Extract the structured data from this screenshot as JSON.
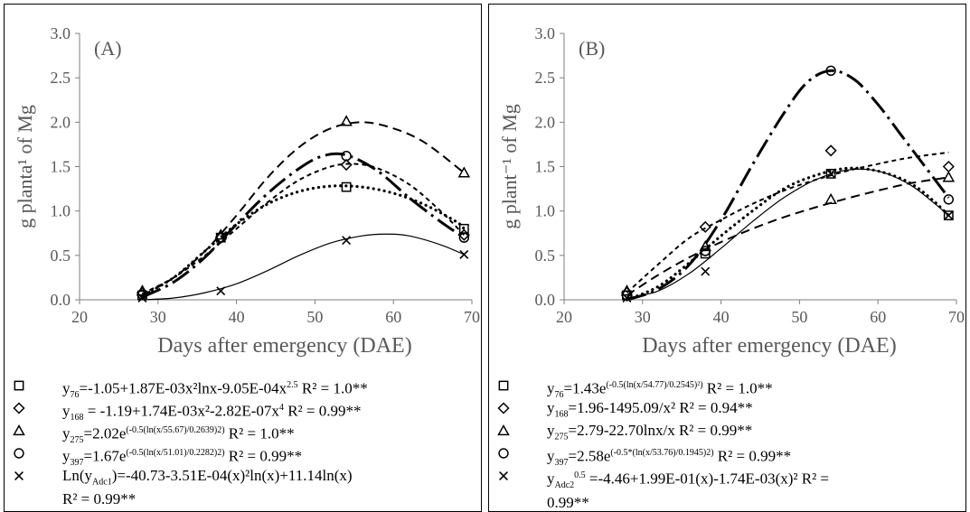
{
  "chart_data": [
    {
      "type": "line",
      "panel_label": "(A)",
      "xlabel": "Days after emergency (DAE)",
      "ylabel": "g planta¹ of Mg",
      "xlim": [
        20,
        70
      ],
      "ylim": [
        0,
        3.0
      ],
      "xticks": [
        "20",
        "30",
        "40",
        "50",
        "60",
        "70"
      ],
      "yticks": [
        "0.0",
        "0.5",
        "1.0",
        "1.5",
        "2.0",
        "2.5",
        "3.0"
      ],
      "grid": false,
      "x": [
        28,
        38,
        54,
        69
      ],
      "series": [
        {
          "marker": "square",
          "line_style": "dotted",
          "values": [
            0.05,
            0.7,
            1.27,
            0.8
          ],
          "fit": [
            [
              28,
              0.05
            ],
            [
              32,
              0.25
            ],
            [
              36,
              0.55
            ],
            [
              40,
              0.85
            ],
            [
              44,
              1.08
            ],
            [
              48,
              1.22
            ],
            [
              52,
              1.28
            ],
            [
              56,
              1.27
            ],
            [
              60,
              1.2
            ],
            [
              64,
              1.07
            ],
            [
              68,
              0.88
            ],
            [
              69,
              0.8
            ]
          ]
        },
        {
          "marker": "diamond",
          "line_style": "short-dash",
          "values": [
            0.08,
            0.7,
            1.52,
            0.73
          ],
          "fit": [
            [
              28,
              0.07
            ],
            [
              32,
              0.25
            ],
            [
              36,
              0.5
            ],
            [
              40,
              0.8
            ],
            [
              44,
              1.1
            ],
            [
              48,
              1.35
            ],
            [
              52,
              1.5
            ],
            [
              55,
              1.53
            ],
            [
              58,
              1.48
            ],
            [
              62,
              1.3
            ],
            [
              66,
              1.0
            ],
            [
              69,
              0.73
            ]
          ]
        },
        {
          "marker": "triangle",
          "line_style": "dash",
          "values": [
            0.1,
            0.73,
            2.01,
            1.43
          ],
          "fit": [
            [
              28,
              0.05
            ],
            [
              32,
              0.25
            ],
            [
              36,
              0.55
            ],
            [
              40,
              0.95
            ],
            [
              44,
              1.38
            ],
            [
              48,
              1.72
            ],
            [
              52,
              1.93
            ],
            [
              56,
              2.0
            ],
            [
              60,
              1.93
            ],
            [
              64,
              1.77
            ],
            [
              69,
              1.43
            ]
          ]
        },
        {
          "marker": "circle",
          "line_style": "dash-dot",
          "values": [
            0.06,
            0.7,
            1.62,
            0.7
          ],
          "fit": [
            [
              28,
              0.03
            ],
            [
              32,
              0.2
            ],
            [
              36,
              0.48
            ],
            [
              40,
              0.85
            ],
            [
              44,
              1.2
            ],
            [
              48,
              1.48
            ],
            [
              51,
              1.62
            ],
            [
              54,
              1.63
            ],
            [
              58,
              1.45
            ],
            [
              62,
              1.15
            ],
            [
              66,
              0.88
            ],
            [
              69,
              0.7
            ]
          ]
        },
        {
          "marker": "x",
          "line_style": "solid-thin",
          "values": [
            0.02,
            0.1,
            0.67,
            0.51
          ],
          "fit": [
            [
              28,
              0.0
            ],
            [
              32,
              0.02
            ],
            [
              36,
              0.08
            ],
            [
              40,
              0.18
            ],
            [
              44,
              0.33
            ],
            [
              48,
              0.5
            ],
            [
              52,
              0.64
            ],
            [
              56,
              0.72
            ],
            [
              59,
              0.74
            ],
            [
              62,
              0.72
            ],
            [
              66,
              0.62
            ],
            [
              69,
              0.51
            ]
          ]
        }
      ],
      "legend": [
        {
          "marker": "square",
          "pre": "y",
          "sub": "76",
          "main": "=-1.05+1.87E-03x²lnx-9.05E-04x",
          "sup": "2.5",
          "tail": "R² = 1.0**"
        },
        {
          "marker": "diamond",
          "pre": "y",
          "sub": "168",
          "main": " = -1.19+1.74E-03x²-2.82E-07x",
          "sup": "4",
          "tail": "R² = 0.99**"
        },
        {
          "marker": "triangle",
          "pre": "y",
          "sub": "275",
          "main": "=2.02e",
          "sup": "(-0.5(ln(x/55.67)/0.2639)2)",
          "tail": "R² = 1.0**"
        },
        {
          "marker": "circle",
          "pre": "y",
          "sub": "397",
          "main": "=1.67e",
          "sup": "(-0.5(ln(x/51.01)/0.2282)2)",
          "tail": "R² = 0.99**"
        },
        {
          "marker": "x",
          "pre": "Ln(y",
          "sub": "Adc1",
          "main": ")=-40.73-3.51E-04(x)²ln(x)+11.14ln(x)",
          "sup": "",
          "tail": "",
          "line2": "R² = 0.99**"
        }
      ]
    },
    {
      "type": "line",
      "panel_label": "(B)",
      "xlabel": "Days after emergency (DAE)",
      "ylabel": "g plant⁻¹ of Mg",
      "xlim": [
        20,
        70
      ],
      "ylim": [
        0,
        3.0
      ],
      "xticks": [
        "20",
        "30",
        "40",
        "50",
        "60",
        "70"
      ],
      "yticks": [
        "0.0",
        "0.5",
        "1.0",
        "1.5",
        "2.0",
        "2.5",
        "3.0"
      ],
      "grid": false,
      "x": [
        28,
        38,
        54,
        69
      ],
      "series": [
        {
          "marker": "square",
          "line_style": "solid-thin",
          "values": [
            0.05,
            0.52,
            1.42,
            0.95
          ],
          "fit": [
            [
              28,
              0.02
            ],
            [
              32,
              0.1
            ],
            [
              36,
              0.3
            ],
            [
              40,
              0.58
            ],
            [
              44,
              0.88
            ],
            [
              48,
              1.15
            ],
            [
              52,
              1.35
            ],
            [
              56,
              1.46
            ],
            [
              60,
              1.45
            ],
            [
              64,
              1.3
            ],
            [
              67,
              1.1
            ],
            [
              69,
              0.95
            ]
          ]
        },
        {
          "marker": "diamond",
          "line_style": "short-dash",
          "values": [
            0.08,
            0.82,
            1.68,
            1.5
          ],
          "fit": [
            [
              28,
              0.08
            ],
            [
              32,
              0.4
            ],
            [
              36,
              0.7
            ],
            [
              40,
              0.9
            ],
            [
              44,
              1.08
            ],
            [
              48,
              1.23
            ],
            [
              52,
              1.35
            ],
            [
              56,
              1.45
            ],
            [
              60,
              1.53
            ],
            [
              64,
              1.6
            ],
            [
              69,
              1.66
            ]
          ]
        },
        {
          "marker": "triangle",
          "line_style": "dash",
          "values": [
            0.1,
            0.6,
            1.13,
            1.38
          ],
          "fit": [
            [
              28,
              0.05
            ],
            [
              32,
              0.28
            ],
            [
              36,
              0.48
            ],
            [
              40,
              0.65
            ],
            [
              44,
              0.8
            ],
            [
              48,
              0.93
            ],
            [
              52,
              1.04
            ],
            [
              56,
              1.14
            ],
            [
              60,
              1.23
            ],
            [
              64,
              1.31
            ],
            [
              69,
              1.38
            ]
          ]
        },
        {
          "marker": "circle",
          "line_style": "dash-dot",
          "values": [
            0.05,
            0.55,
            2.58,
            1.13
          ],
          "fit": [
            [
              28,
              0.0
            ],
            [
              32,
              0.12
            ],
            [
              36,
              0.4
            ],
            [
              40,
              0.9
            ],
            [
              44,
              1.52
            ],
            [
              48,
              2.1
            ],
            [
              51,
              2.45
            ],
            [
              54,
              2.58
            ],
            [
              57,
              2.48
            ],
            [
              60,
              2.2
            ],
            [
              63,
              1.85
            ],
            [
              66,
              1.5
            ],
            [
              69,
              1.15
            ]
          ]
        },
        {
          "marker": "x",
          "line_style": "dotted",
          "values": [
            0.02,
            0.32,
            1.42,
            0.95
          ],
          "fit": [
            [
              28,
              0.0
            ],
            [
              32,
              0.15
            ],
            [
              36,
              0.42
            ],
            [
              40,
              0.72
            ],
            [
              44,
              1.0
            ],
            [
              48,
              1.25
            ],
            [
              52,
              1.4
            ],
            [
              56,
              1.48
            ],
            [
              60,
              1.45
            ],
            [
              64,
              1.32
            ],
            [
              67,
              1.12
            ],
            [
              69,
              0.95
            ]
          ]
        }
      ],
      "legend": [
        {
          "marker": "square",
          "pre": "y",
          "sub": "76",
          "main": "=1.43e",
          "sup": "(-0.5(ln(x/54.77)/0.2545)²)",
          "tail": "R² = 1.0**"
        },
        {
          "marker": "diamond",
          "pre": "y",
          "sub": "168",
          "main": "=1.96-1495.09/x²",
          "sup": "",
          "tail": "R² = 0.94**"
        },
        {
          "marker": "triangle",
          "pre": "y",
          "sub": "275",
          "main": "=2.79-22.70lnx/x",
          "sup": "",
          "tail": "R² = 0.99**"
        },
        {
          "marker": "circle",
          "pre": "y",
          "sub": "397",
          "main": "=2.58e",
          "sup": "(-0.5*(ln(x/53.76)/0.1945)2)",
          "tail": "R² = 0.99**"
        },
        {
          "marker": "x",
          "pre": "y",
          "sub": "Adc2",
          "main": "",
          "sup": "0.5",
          "tail": "=-4.46+1.99E-01(x)-1.74E-03(x)²  R² =",
          "line2": "0.99**"
        }
      ]
    }
  ]
}
